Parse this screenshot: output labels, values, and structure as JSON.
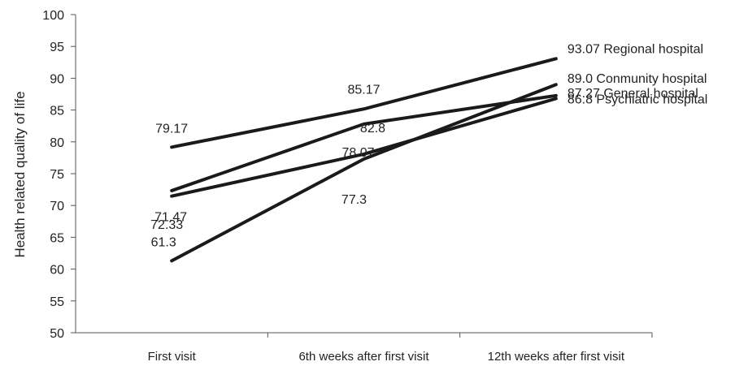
{
  "chart_data": {
    "type": "line",
    "title": "",
    "xlabel": "",
    "ylabel": "Health related quality of life",
    "categories": [
      "First visit",
      "6th weeks after first visit",
      "12th weeks after first visit"
    ],
    "ylim": [
      50,
      100
    ],
    "yticks": [
      50,
      55,
      60,
      65,
      70,
      75,
      80,
      85,
      90,
      95,
      100
    ],
    "grid": false,
    "series": [
      {
        "name": "Regional hospital",
        "values": [
          79.17,
          85.17,
          93.07
        ],
        "labels": [
          "79.17",
          "85.17",
          "93.07 Regional hospital"
        ]
      },
      {
        "name": "Conmunity hospital",
        "values": [
          61.3,
          77.3,
          89.0
        ],
        "labels": [
          "61.3",
          "77.3",
          "89.0 Conmunity hospital"
        ]
      },
      {
        "name": "General hospital",
        "values": [
          72.33,
          82.8,
          87.27
        ],
        "labels": [
          "72.33",
          "82.8",
          "87.27 General hospital"
        ]
      },
      {
        "name": "Psychiatric hospital",
        "values": [
          71.47,
          78.07,
          86.8
        ],
        "labels": [
          "71.47",
          "78.07",
          "86.8 Psychiatric hospital"
        ]
      }
    ],
    "line_color": "#1a1a1a"
  }
}
